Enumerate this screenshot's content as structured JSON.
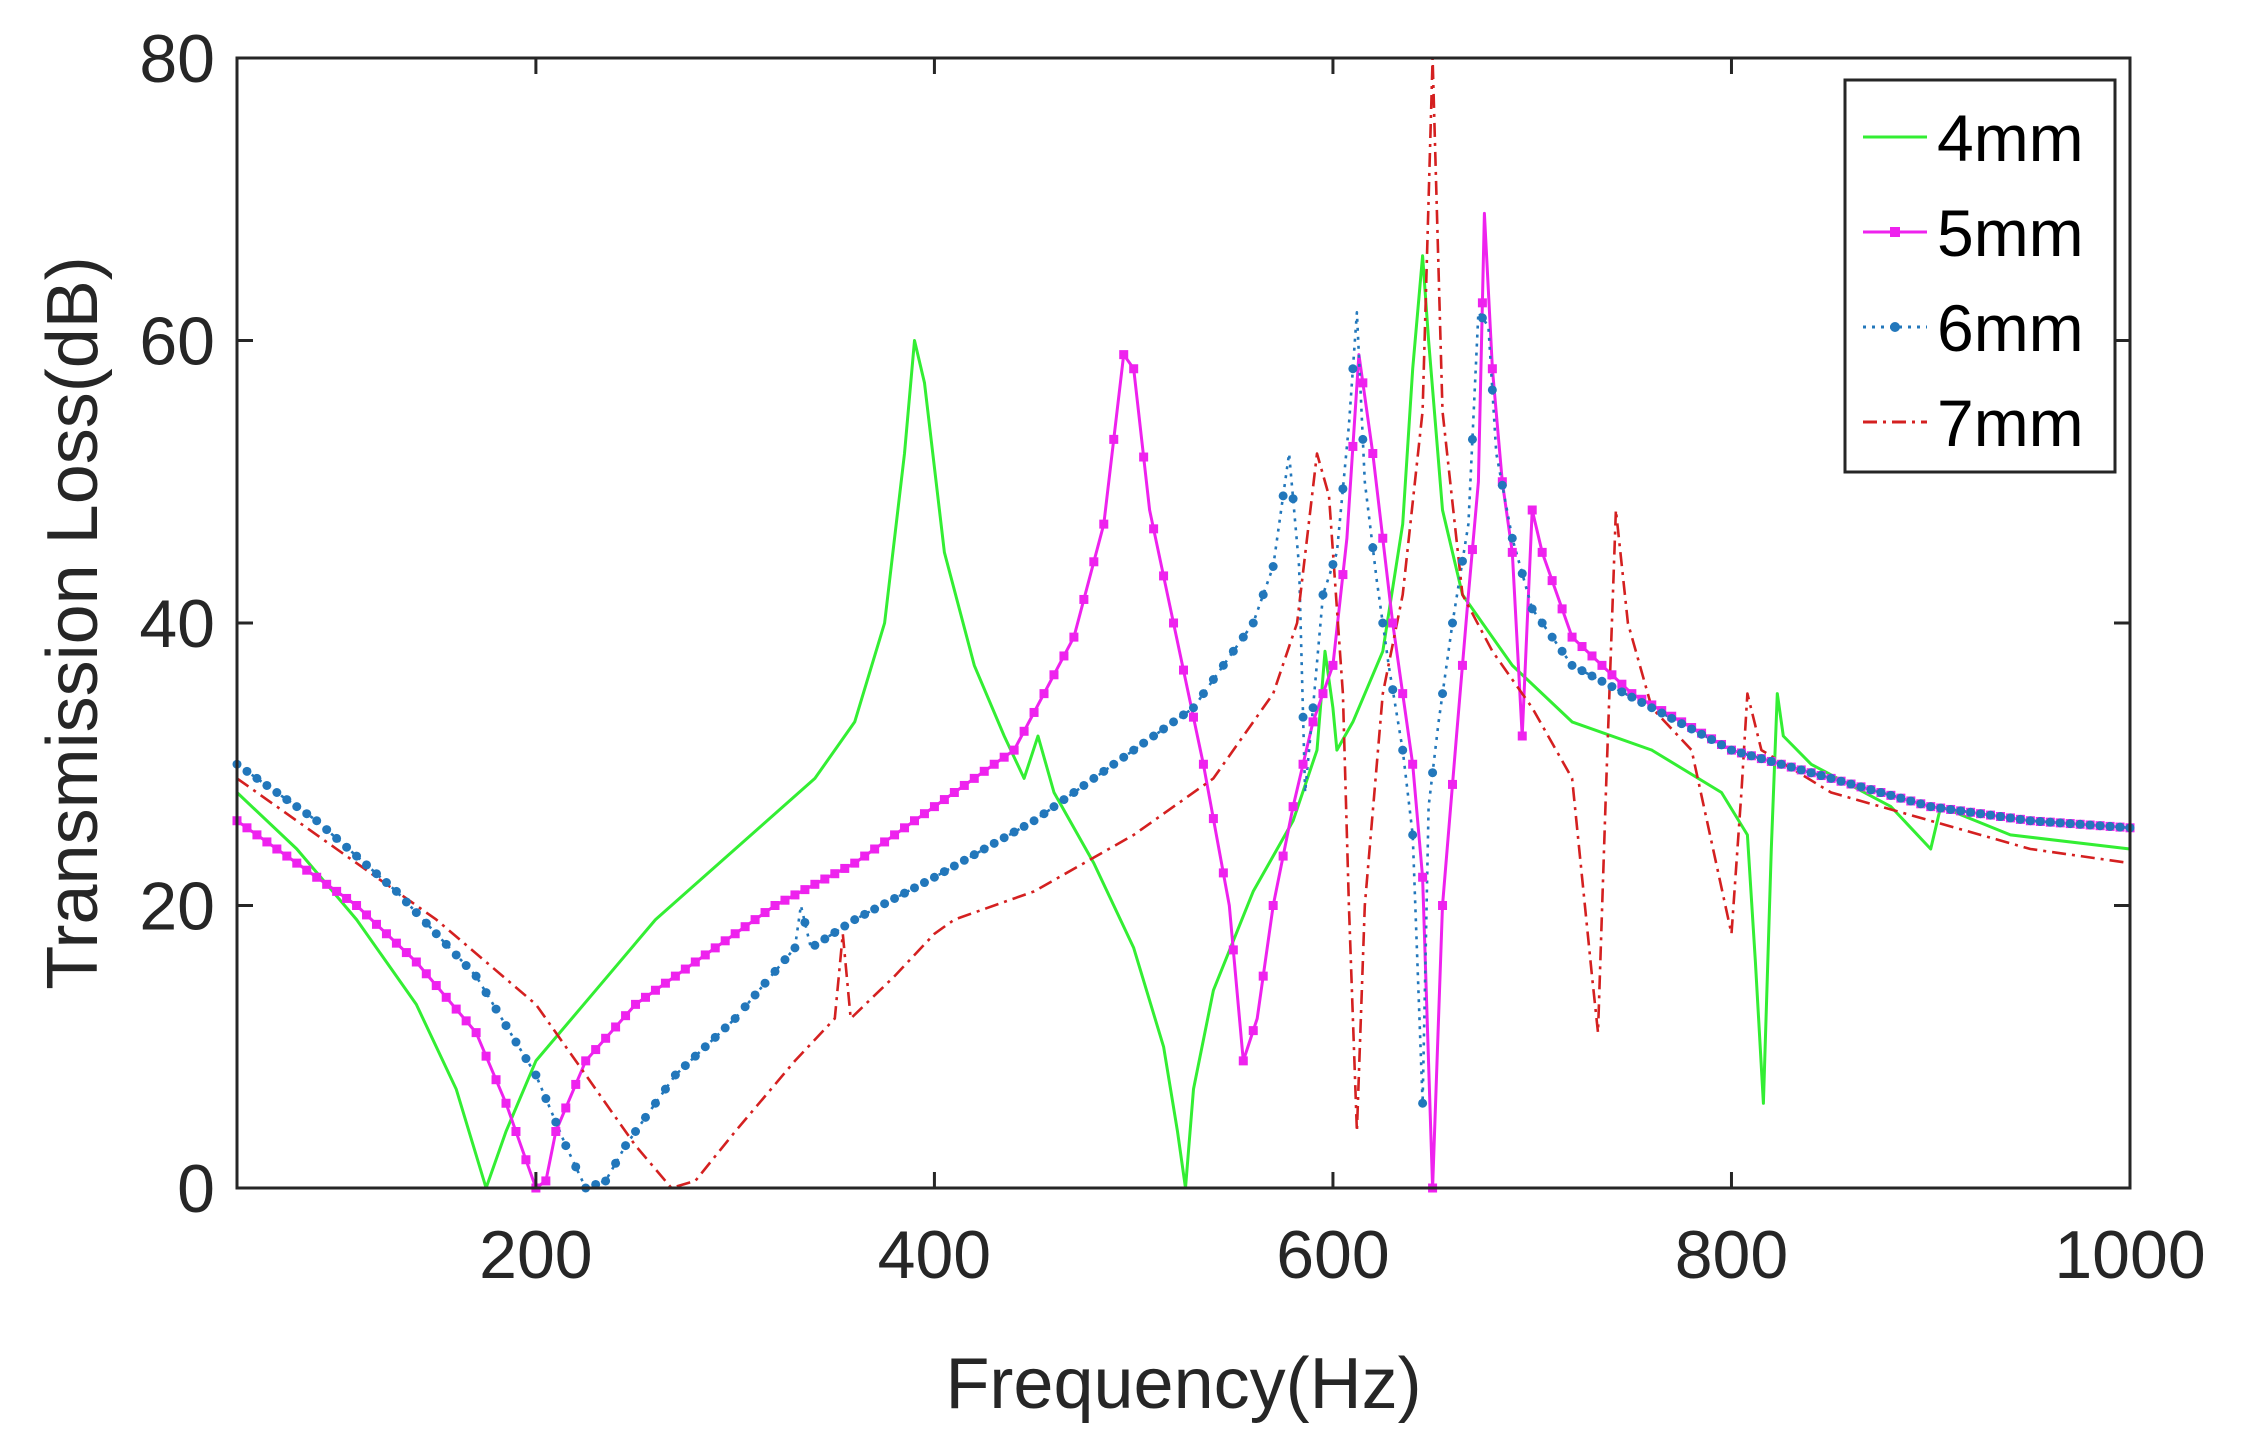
{
  "chart_data": {
    "type": "line",
    "title": "",
    "xlabel": "Frequency(Hz)",
    "ylabel": "Transmission Loss(dB)",
    "xlim": [
      50,
      1000
    ],
    "ylim": [
      0,
      80
    ],
    "x_ticks": [
      200,
      400,
      600,
      800,
      1000
    ],
    "y_ticks": [
      0,
      20,
      40,
      60,
      80
    ],
    "x_tick_labels": [
      "200",
      "400",
      "600",
      "800",
      "1000"
    ],
    "y_tick_labels": [
      "0",
      "20",
      "40",
      "60",
      "80"
    ],
    "grid": false,
    "legend_position": "top-right",
    "series": [
      {
        "name": "4mm",
        "color": "#33ee33",
        "style": "solid",
        "marker": "none",
        "points": [
          [
            50,
            28
          ],
          [
            80,
            24
          ],
          [
            110,
            19
          ],
          [
            140,
            13
          ],
          [
            160,
            7
          ],
          [
            175,
            0
          ],
          [
            185,
            4
          ],
          [
            200,
            9
          ],
          [
            230,
            14
          ],
          [
            260,
            19
          ],
          [
            300,
            24
          ],
          [
            340,
            29
          ],
          [
            360,
            33
          ],
          [
            375,
            40
          ],
          [
            385,
            52
          ],
          [
            390,
            60
          ],
          [
            395,
            57
          ],
          [
            405,
            45
          ],
          [
            420,
            37
          ],
          [
            435,
            32
          ],
          [
            445,
            29
          ],
          [
            452,
            32
          ],
          [
            460,
            28
          ],
          [
            480,
            23
          ],
          [
            500,
            17
          ],
          [
            515,
            10
          ],
          [
            522,
            4
          ],
          [
            526,
            0
          ],
          [
            530,
            7
          ],
          [
            540,
            14
          ],
          [
            560,
            21
          ],
          [
            580,
            26
          ],
          [
            592,
            31
          ],
          [
            596,
            38
          ],
          [
            600,
            34
          ],
          [
            602,
            31
          ],
          [
            610,
            33
          ],
          [
            625,
            38
          ],
          [
            635,
            47
          ],
          [
            640,
            58
          ],
          [
            645,
            66
          ],
          [
            648,
            60
          ],
          [
            655,
            48
          ],
          [
            665,
            42
          ],
          [
            690,
            37
          ],
          [
            720,
            33
          ],
          [
            760,
            31
          ],
          [
            795,
            28
          ],
          [
            808,
            25
          ],
          [
            812,
            16
          ],
          [
            816,
            6
          ],
          [
            820,
            24
          ],
          [
            823,
            35
          ],
          [
            826,
            32
          ],
          [
            840,
            30
          ],
          [
            880,
            27
          ],
          [
            900,
            24
          ],
          [
            905,
            27
          ],
          [
            940,
            25
          ],
          [
            1000,
            24
          ]
        ]
      },
      {
        "name": "5mm",
        "color": "#ee22ee",
        "style": "solid",
        "marker": "filled-square",
        "points": [
          [
            50,
            26
          ],
          [
            80,
            23
          ],
          [
            110,
            20
          ],
          [
            140,
            16
          ],
          [
            170,
            11
          ],
          [
            185,
            6
          ],
          [
            195,
            2
          ],
          [
            200,
            0
          ],
          [
            205,
            0.5
          ],
          [
            210,
            4
          ],
          [
            225,
            9
          ],
          [
            250,
            13
          ],
          [
            280,
            16
          ],
          [
            320,
            20
          ],
          [
            360,
            23
          ],
          [
            400,
            27
          ],
          [
            440,
            31
          ],
          [
            470,
            39
          ],
          [
            485,
            47
          ],
          [
            495,
            59
          ],
          [
            500,
            58
          ],
          [
            508,
            48
          ],
          [
            520,
            40
          ],
          [
            535,
            30
          ],
          [
            548,
            20
          ],
          [
            555,
            9
          ],
          [
            562,
            12
          ],
          [
            570,
            20
          ],
          [
            580,
            27
          ],
          [
            590,
            33
          ],
          [
            600,
            37
          ],
          [
            607,
            46
          ],
          [
            613,
            59
          ],
          [
            620,
            52
          ],
          [
            630,
            40
          ],
          [
            640,
            30
          ],
          [
            645,
            22
          ],
          [
            650,
            0
          ],
          [
            655,
            20
          ],
          [
            662,
            32
          ],
          [
            668,
            42
          ],
          [
            673,
            50
          ],
          [
            676,
            69
          ],
          [
            680,
            58
          ],
          [
            685,
            50
          ],
          [
            690,
            45
          ],
          [
            695,
            32
          ],
          [
            700,
            48
          ],
          [
            705,
            45
          ],
          [
            720,
            39
          ],
          [
            750,
            35
          ],
          [
            800,
            31
          ],
          [
            850,
            29
          ],
          [
            900,
            27
          ],
          [
            950,
            26
          ],
          [
            1000,
            25.5
          ]
        ]
      },
      {
        "name": "6mm",
        "color": "#2277bb",
        "style": "dotted",
        "marker": "filled-circle",
        "points": [
          [
            50,
            30
          ],
          [
            90,
            26
          ],
          [
            130,
            21
          ],
          [
            170,
            15
          ],
          [
            200,
            8
          ],
          [
            215,
            3
          ],
          [
            225,
            0
          ],
          [
            235,
            0.5
          ],
          [
            245,
            3
          ],
          [
            270,
            8
          ],
          [
            300,
            12
          ],
          [
            330,
            17
          ],
          [
            333,
            20
          ],
          [
            338,
            17
          ],
          [
            360,
            19
          ],
          [
            400,
            22
          ],
          [
            450,
            26
          ],
          [
            500,
            31
          ],
          [
            530,
            34
          ],
          [
            545,
            37
          ],
          [
            560,
            40
          ],
          [
            570,
            44
          ],
          [
            578,
            52
          ],
          [
            583,
            44
          ],
          [
            586,
            28
          ],
          [
            590,
            34
          ],
          [
            595,
            42
          ],
          [
            602,
            45
          ],
          [
            608,
            54
          ],
          [
            612,
            62
          ],
          [
            616,
            50
          ],
          [
            622,
            43
          ],
          [
            628,
            37
          ],
          [
            635,
            31
          ],
          [
            640,
            25
          ],
          [
            645,
            6
          ],
          [
            648,
            27
          ],
          [
            653,
            33
          ],
          [
            660,
            40
          ],
          [
            668,
            47
          ],
          [
            673,
            62
          ],
          [
            678,
            61
          ],
          [
            682,
            52
          ],
          [
            690,
            46
          ],
          [
            700,
            41
          ],
          [
            720,
            37
          ],
          [
            760,
            34
          ],
          [
            800,
            31
          ],
          [
            850,
            29
          ],
          [
            900,
            27
          ],
          [
            950,
            26
          ],
          [
            1000,
            25.5
          ]
        ]
      },
      {
        "name": "7mm",
        "color": "#d42020",
        "style": "dashdot",
        "marker": "none",
        "points": [
          [
            50,
            29
          ],
          [
            100,
            24
          ],
          [
            150,
            19
          ],
          [
            200,
            13
          ],
          [
            230,
            7
          ],
          [
            250,
            3
          ],
          [
            268,
            0
          ],
          [
            280,
            0.5
          ],
          [
            300,
            4
          ],
          [
            330,
            9
          ],
          [
            350,
            12
          ],
          [
            354,
            18
          ],
          [
            358,
            12
          ],
          [
            380,
            15
          ],
          [
            400,
            18
          ],
          [
            410,
            19
          ],
          [
            450,
            21
          ],
          [
            500,
            25
          ],
          [
            540,
            29
          ],
          [
            570,
            35
          ],
          [
            582,
            40
          ],
          [
            592,
            52
          ],
          [
            598,
            49
          ],
          [
            605,
            35
          ],
          [
            608,
            20
          ],
          [
            612,
            4
          ],
          [
            616,
            20
          ],
          [
            625,
            35
          ],
          [
            635,
            42
          ],
          [
            645,
            55
          ],
          [
            650,
            80
          ],
          [
            655,
            55
          ],
          [
            665,
            42
          ],
          [
            680,
            38
          ],
          [
            700,
            34
          ],
          [
            720,
            29
          ],
          [
            730,
            15
          ],
          [
            733,
            11
          ],
          [
            737,
            28
          ],
          [
            742,
            48
          ],
          [
            748,
            40
          ],
          [
            760,
            34
          ],
          [
            780,
            31
          ],
          [
            800,
            18
          ],
          [
            805,
            28
          ],
          [
            808,
            35
          ],
          [
            815,
            31
          ],
          [
            850,
            28
          ],
          [
            900,
            26
          ],
          [
            950,
            24
          ],
          [
            1000,
            23
          ]
        ]
      }
    ]
  }
}
